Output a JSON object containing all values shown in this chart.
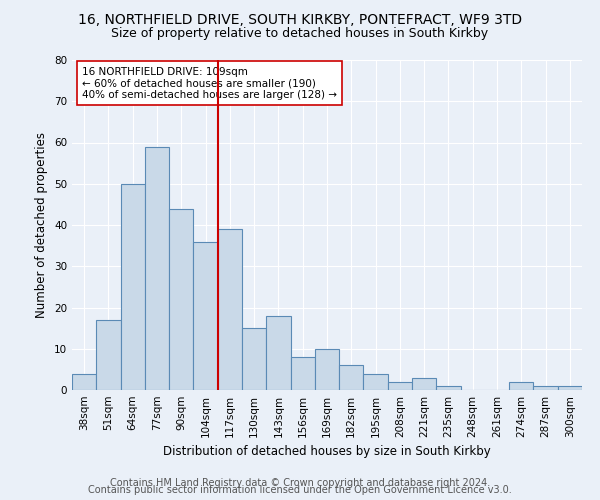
{
  "title1": "16, NORTHFIELD DRIVE, SOUTH KIRKBY, PONTEFRACT, WF9 3TD",
  "title2": "Size of property relative to detached houses in South Kirkby",
  "xlabel": "Distribution of detached houses by size in South Kirkby",
  "ylabel": "Number of detached properties",
  "categories": [
    "38sqm",
    "51sqm",
    "64sqm",
    "77sqm",
    "90sqm",
    "104sqm",
    "117sqm",
    "130sqm",
    "143sqm",
    "156sqm",
    "169sqm",
    "182sqm",
    "195sqm",
    "208sqm",
    "221sqm",
    "235sqm",
    "248sqm",
    "261sqm",
    "274sqm",
    "287sqm",
    "300sqm"
  ],
  "values": [
    4,
    17,
    50,
    59,
    44,
    36,
    39,
    15,
    18,
    8,
    10,
    6,
    4,
    2,
    3,
    1,
    0,
    0,
    2,
    1,
    1
  ],
  "bar_color": "#c9d9e8",
  "bar_edge_color": "#5a8ab5",
  "vline_x": 5.5,
  "vline_color": "#cc0000",
  "annotation_text": "16 NORTHFIELD DRIVE: 109sqm\n← 60% of detached houses are smaller (190)\n40% of semi-detached houses are larger (128) →",
  "annotation_box_color": "#ffffff",
  "annotation_box_edge_color": "#cc0000",
  "ylim": [
    0,
    80
  ],
  "yticks": [
    0,
    10,
    20,
    30,
    40,
    50,
    60,
    70,
    80
  ],
  "footer1": "Contains HM Land Registry data © Crown copyright and database right 2024.",
  "footer2": "Contains public sector information licensed under the Open Government Licence v3.0.",
  "title_fontsize": 10,
  "subtitle_fontsize": 9,
  "axis_label_fontsize": 8.5,
  "tick_fontsize": 7.5,
  "annotation_fontsize": 7.5,
  "footer_fontsize": 7,
  "bg_color": "#eaf0f8",
  "plot_bg_color": "#eaf0f8"
}
